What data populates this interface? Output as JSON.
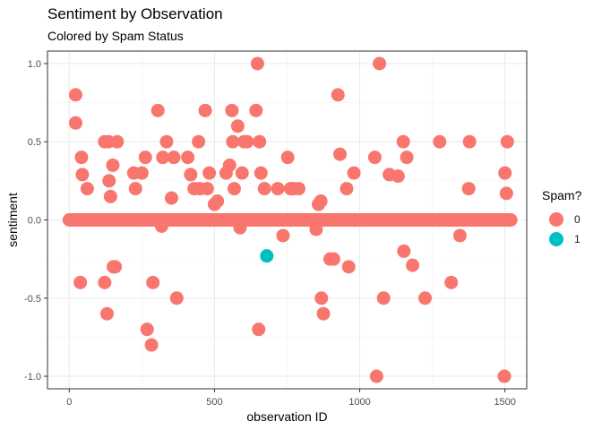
{
  "chart_data": {
    "type": "scatter",
    "title": "Sentiment by Observation",
    "subtitle": "Colored by Spam Status",
    "xlabel": "observation ID",
    "ylabel": "sentiment",
    "xlim": [
      -75,
      1575
    ],
    "ylim": [
      -1.08,
      1.08
    ],
    "x_ticks": [
      0,
      500,
      1000,
      1500
    ],
    "y_ticks": [
      -1.0,
      -0.5,
      0.0,
      0.5,
      1.0
    ],
    "y_tick_labels": [
      "-1.0",
      "-0.5",
      "0.0",
      "0.5",
      "1.0"
    ],
    "grid": true,
    "legend": {
      "title": "Spam?",
      "position": "right"
    },
    "colors": {
      "0": "#F8766D",
      "1": "#00BFC4"
    },
    "zero_band": {
      "x_start": 0,
      "x_end": 1520,
      "y": 0,
      "series": "0"
    },
    "series": [
      {
        "name": "0",
        "points": [
          [
            22,
            0.8
          ],
          [
            22,
            0.62
          ],
          [
            38,
            -0.4
          ],
          [
            42,
            0.4
          ],
          [
            45,
            0.29
          ],
          [
            62,
            0.2
          ],
          [
            122,
            0.5
          ],
          [
            122,
            -0.4
          ],
          [
            130,
            -0.6
          ],
          [
            135,
            0.5
          ],
          [
            137,
            0.25
          ],
          [
            142,
            0.15
          ],
          [
            150,
            0.35
          ],
          [
            152,
            -0.3
          ],
          [
            158,
            -0.3
          ],
          [
            165,
            0.5
          ],
          [
            222,
            0.3
          ],
          [
            228,
            0.2
          ],
          [
            250,
            0.3
          ],
          [
            262,
            0.4
          ],
          [
            268,
            -0.7
          ],
          [
            283,
            -0.8
          ],
          [
            288,
            -0.4
          ],
          [
            305,
            0.7
          ],
          [
            318,
            -0.04
          ],
          [
            322,
            0.4
          ],
          [
            335,
            0.5
          ],
          [
            352,
            0.14
          ],
          [
            360,
            0.4
          ],
          [
            370,
            -0.5
          ],
          [
            408,
            0.4
          ],
          [
            418,
            0.29
          ],
          [
            430,
            0.2
          ],
          [
            445,
            0.5
          ],
          [
            450,
            0.2
          ],
          [
            468,
            0.7
          ],
          [
            475,
            0.2
          ],
          [
            482,
            0.3
          ],
          [
            500,
            0.1
          ],
          [
            510,
            0.12
          ],
          [
            540,
            0.3
          ],
          [
            552,
            0.35
          ],
          [
            560,
            0.7
          ],
          [
            563,
            0.5
          ],
          [
            568,
            0.2
          ],
          [
            580,
            0.6
          ],
          [
            588,
            -0.05
          ],
          [
            595,
            0.3
          ],
          [
            602,
            0.5
          ],
          [
            612,
            0.5
          ],
          [
            643,
            0.7
          ],
          [
            648,
            1.0
          ],
          [
            652,
            -0.7
          ],
          [
            655,
            0.5
          ],
          [
            660,
            0.3
          ],
          [
            672,
            0.2
          ],
          [
            718,
            0.2
          ],
          [
            736,
            -0.1
          ],
          [
            752,
            0.4
          ],
          [
            762,
            0.2
          ],
          [
            772,
            0.2
          ],
          [
            790,
            0.2
          ],
          [
            850,
            -0.06
          ],
          [
            858,
            0.1
          ],
          [
            866,
            0.12
          ],
          [
            868,
            -0.5
          ],
          [
            875,
            -0.6
          ],
          [
            898,
            -0.25
          ],
          [
            910,
            -0.25
          ],
          [
            925,
            0.8
          ],
          [
            932,
            0.42
          ],
          [
            955,
            0.2
          ],
          [
            962,
            -0.3
          ],
          [
            980,
            0.3
          ],
          [
            1052,
            0.4
          ],
          [
            1058,
            -1.0
          ],
          [
            1068,
            1.0
          ],
          [
            1082,
            -0.5
          ],
          [
            1102,
            0.29
          ],
          [
            1132,
            0.28
          ],
          [
            1150,
            0.5
          ],
          [
            1152,
            -0.2
          ],
          [
            1162,
            0.4
          ],
          [
            1182,
            -0.29
          ],
          [
            1225,
            -0.5
          ],
          [
            1275,
            0.5
          ],
          [
            1315,
            -0.4
          ],
          [
            1345,
            -0.1
          ],
          [
            1375,
            0.2
          ],
          [
            1378,
            0.5
          ],
          [
            1498,
            -1.0
          ],
          [
            1500,
            0.3
          ],
          [
            1505,
            0.17
          ],
          [
            1508,
            0.5
          ]
        ]
      },
      {
        "name": "1",
        "points": [
          [
            680,
            -0.23
          ]
        ]
      }
    ]
  }
}
